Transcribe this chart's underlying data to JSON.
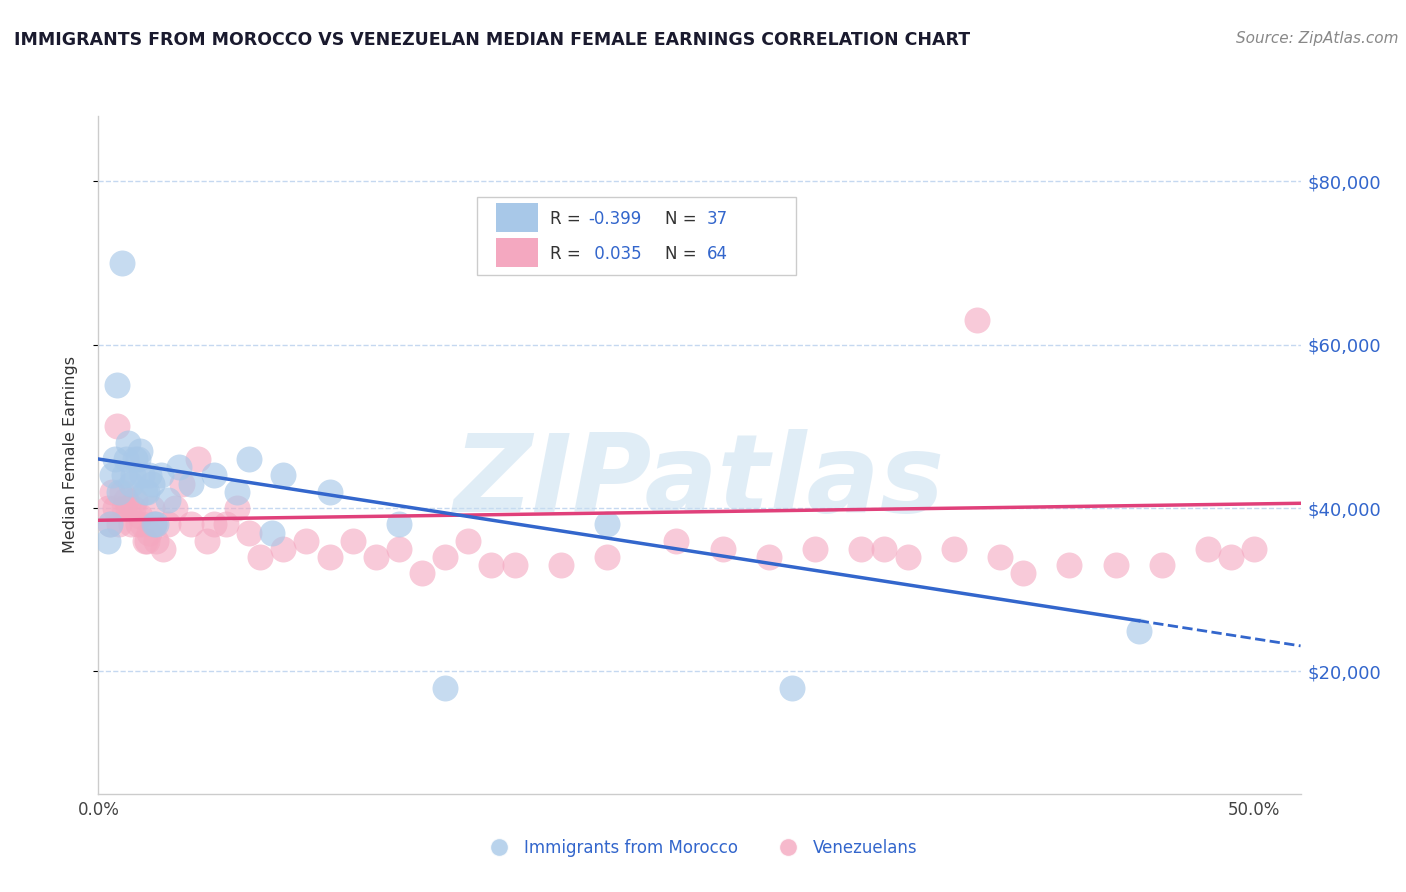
{
  "title": "IMMIGRANTS FROM MOROCCO VS VENEZUELAN MEDIAN FEMALE EARNINGS CORRELATION CHART",
  "source": "Source: ZipAtlas.com",
  "ylabel": "Median Female Earnings",
  "yticks": [
    20000,
    40000,
    60000,
    80000
  ],
  "ytick_labels": [
    "$20,000",
    "$40,000",
    "$60,000",
    "$80,000"
  ],
  "xlim": [
    0.0,
    0.52
  ],
  "ylim": [
    5000,
    88000
  ],
  "morocco_color": "#a8c8e8",
  "venezuela_color": "#f4a8c0",
  "morocco_line_color": "#3366cc",
  "venezuela_line_color": "#e0407a",
  "watermark": "ZIPatlas",
  "watermark_color": "#c8dff0",
  "morocco_r": "-0.399",
  "morocco_n": "37",
  "venezuela_r": "0.035",
  "venezuela_n": "64",
  "morocco_x": [
    0.004,
    0.005,
    0.006,
    0.007,
    0.008,
    0.009,
    0.01,
    0.011,
    0.012,
    0.013,
    0.014,
    0.015,
    0.016,
    0.017,
    0.018,
    0.019,
    0.02,
    0.021,
    0.022,
    0.023,
    0.024,
    0.025,
    0.027,
    0.03,
    0.035,
    0.04,
    0.05,
    0.06,
    0.065,
    0.075,
    0.08,
    0.1,
    0.13,
    0.15,
    0.22,
    0.3,
    0.45
  ],
  "morocco_y": [
    36000,
    38000,
    44000,
    46000,
    55000,
    42000,
    70000,
    44000,
    46000,
    48000,
    43000,
    44000,
    46000,
    46000,
    47000,
    44000,
    42000,
    42000,
    44000,
    43000,
    38000,
    38000,
    44000,
    41000,
    45000,
    43000,
    44000,
    42000,
    46000,
    37000,
    44000,
    42000,
    38000,
    18000,
    38000,
    18000,
    25000
  ],
  "venezuela_x": [
    0.004,
    0.005,
    0.006,
    0.007,
    0.008,
    0.009,
    0.01,
    0.011,
    0.012,
    0.013,
    0.014,
    0.015,
    0.016,
    0.017,
    0.018,
    0.019,
    0.02,
    0.021,
    0.022,
    0.023,
    0.024,
    0.025,
    0.028,
    0.03,
    0.033,
    0.036,
    0.04,
    0.043,
    0.047,
    0.05,
    0.055,
    0.06,
    0.065,
    0.07,
    0.08,
    0.09,
    0.1,
    0.11,
    0.12,
    0.13,
    0.14,
    0.15,
    0.16,
    0.17,
    0.18,
    0.2,
    0.22,
    0.25,
    0.27,
    0.29,
    0.31,
    0.33,
    0.35,
    0.37,
    0.38,
    0.39,
    0.4,
    0.42,
    0.44,
    0.46,
    0.48,
    0.49,
    0.5,
    0.34
  ],
  "venezuela_y": [
    40000,
    38000,
    42000,
    40000,
    50000,
    38000,
    42000,
    40000,
    41000,
    40000,
    38000,
    40000,
    41000,
    38000,
    39000,
    38000,
    36000,
    36000,
    37000,
    40000,
    38000,
    36000,
    35000,
    38000,
    40000,
    43000,
    38000,
    46000,
    36000,
    38000,
    38000,
    40000,
    37000,
    34000,
    35000,
    36000,
    34000,
    36000,
    34000,
    35000,
    32000,
    34000,
    36000,
    33000,
    33000,
    33000,
    34000,
    36000,
    35000,
    34000,
    35000,
    35000,
    34000,
    35000,
    63000,
    34000,
    32000,
    33000,
    33000,
    33000,
    35000,
    34000,
    35000,
    35000
  ]
}
